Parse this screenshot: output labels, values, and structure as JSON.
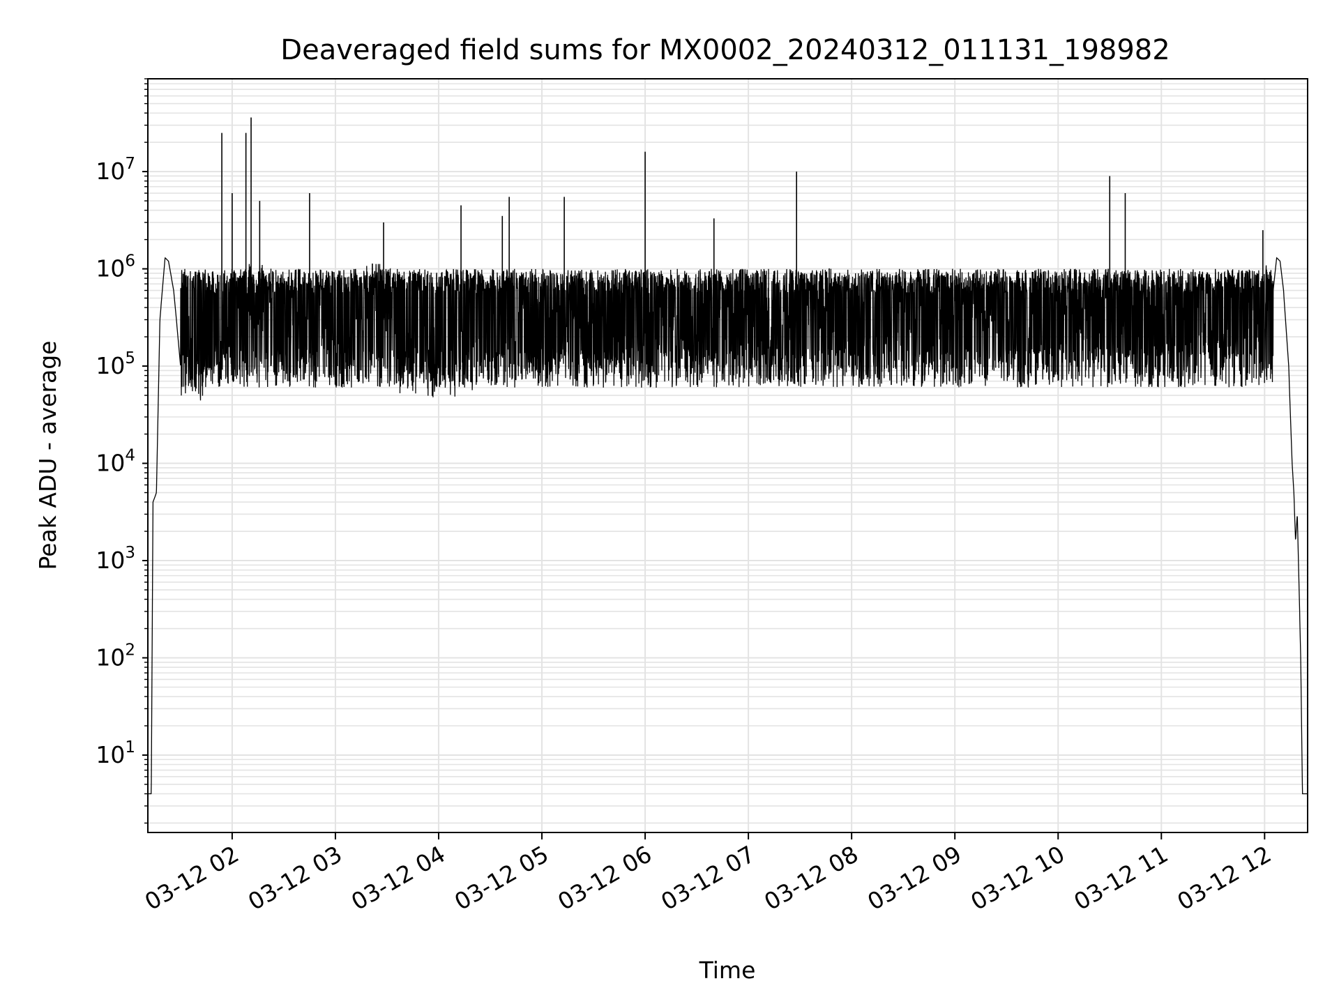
{
  "chart_data": {
    "type": "line",
    "title": "Deaveraged field sums for MX0002_20240312_011131_198982",
    "xlabel": "Time",
    "ylabel": "Peak ADU - average",
    "y_scale": "log",
    "ylim": [
      1.6,
      90000000
    ],
    "xlim": [
      "03-12 01:11",
      "03-12 12:25"
    ],
    "grid": true,
    "line_color": "#000000",
    "grid_color": "#e3e3e3",
    "x_ticks": [
      {
        "label": "03-12 02",
        "time": "03-12 02:00"
      },
      {
        "label": "03-12 03",
        "time": "03-12 03:00"
      },
      {
        "label": "03-12 04",
        "time": "03-12 04:00"
      },
      {
        "label": "03-12 05",
        "time": "03-12 05:00"
      },
      {
        "label": "03-12 06",
        "time": "03-12 06:00"
      },
      {
        "label": "03-12 07",
        "time": "03-12 07:00"
      },
      {
        "label": "03-12 08",
        "time": "03-12 08:00"
      },
      {
        "label": "03-12 09",
        "time": "03-12 09:00"
      },
      {
        "label": "03-12 10",
        "time": "03-12 10:00"
      },
      {
        "label": "03-12 11",
        "time": "03-12 11:00"
      },
      {
        "label": "03-12 12",
        "time": "03-12 12:00"
      }
    ],
    "y_ticks": [
      {
        "base": "10",
        "exp": "1",
        "value": 10
      },
      {
        "base": "10",
        "exp": "2",
        "value": 100
      },
      {
        "base": "10",
        "exp": "3",
        "value": 1000
      },
      {
        "base": "10",
        "exp": "4",
        "value": 10000
      },
      {
        "base": "10",
        "exp": "5",
        "value": 100000
      },
      {
        "base": "10",
        "exp": "6",
        "value": 1000000
      },
      {
        "base": "10",
        "exp": "7",
        "value": 10000000
      }
    ],
    "series": [
      {
        "points": [
          [
            "03-12 01:11",
            4
          ],
          [
            "03-12 01:13",
            4
          ],
          [
            "03-12 01:14",
            4000
          ],
          [
            "03-12 01:16",
            5000
          ],
          [
            "03-12 01:18",
            300000
          ],
          [
            "03-12 01:21",
            1300000
          ],
          [
            "03-12 01:23",
            1200000
          ],
          [
            "03-12 01:26",
            600000
          ],
          [
            "03-12 01:28",
            250000
          ],
          [
            "03-12 01:30",
            100000
          ],
          [
            "03-12 01:35",
            150000
          ],
          [
            "03-12 01:40",
            90000
          ],
          [
            "03-12 01:50",
            140000
          ],
          [
            "03-12 02:00",
            300000
          ],
          [
            "03-12 02:15",
            600000
          ],
          [
            "03-12 02:30",
            350000
          ],
          [
            "03-12 02:45",
            250000
          ],
          [
            "03-12 03:00",
            180000
          ],
          [
            "03-12 03:15",
            400000
          ],
          [
            "03-12 03:25",
            800000
          ],
          [
            "03-12 03:30",
            150000
          ],
          [
            "03-12 03:45",
            110000
          ],
          [
            "03-12 04:00",
            100000
          ],
          [
            "03-12 04:30",
            150000
          ],
          [
            "03-12 05:00",
            200000
          ],
          [
            "03-12 06:00",
            250000
          ],
          [
            "03-12 07:00",
            300000
          ],
          [
            "03-12 08:00",
            320000
          ],
          [
            "03-12 09:00",
            330000
          ],
          [
            "03-12 10:00",
            330000
          ],
          [
            "03-12 11:00",
            320000
          ],
          [
            "03-12 11:55",
            400000
          ],
          [
            "03-12 12:05",
            600000
          ],
          [
            "03-12 12:07",
            1300000
          ],
          [
            "03-12 12:09",
            1200000
          ],
          [
            "03-12 12:11",
            600000
          ],
          [
            "03-12 12:14",
            100000
          ],
          [
            "03-12 12:16",
            10000
          ],
          [
            "03-12 12:17",
            5000
          ],
          [
            "03-12 12:18",
            1600
          ],
          [
            "03-12 12:19",
            3000
          ],
          [
            "03-12 12:21",
            100
          ],
          [
            "03-12 12:22",
            4
          ],
          [
            "03-12 12:25",
            4
          ]
        ]
      }
    ],
    "spikes": [
      {
        "time": "03-12 01:54",
        "value": 25000000
      },
      {
        "time": "03-12 02:08",
        "value": 25000000
      },
      {
        "time": "03-12 02:11",
        "value": 36000000
      },
      {
        "time": "03-12 02:00",
        "value": 6000000
      },
      {
        "time": "03-12 02:16",
        "value": 5000000
      },
      {
        "time": "03-12 02:45",
        "value": 6000000
      },
      {
        "time": "03-12 03:28",
        "value": 3000000
      },
      {
        "time": "03-12 04:13",
        "value": 4500000
      },
      {
        "time": "03-12 04:41",
        "value": 5500000
      },
      {
        "time": "03-12 04:37",
        "value": 3500000
      },
      {
        "time": "03-12 05:13",
        "value": 5500000
      },
      {
        "time": "03-12 06:00",
        "value": 16000000
      },
      {
        "time": "03-12 06:40",
        "value": 3300000
      },
      {
        "time": "03-12 07:28",
        "value": 10000000
      },
      {
        "time": "03-12 10:30",
        "value": 9000000
      },
      {
        "time": "03-12 10:39",
        "value": 6000000
      },
      {
        "time": "03-12 11:59",
        "value": 2500000
      }
    ],
    "noise_band": {
      "start": "03-12 01:30",
      "end": "03-12 12:05",
      "upper_envelope": 1000000,
      "lower_envelope": 60000
    }
  }
}
